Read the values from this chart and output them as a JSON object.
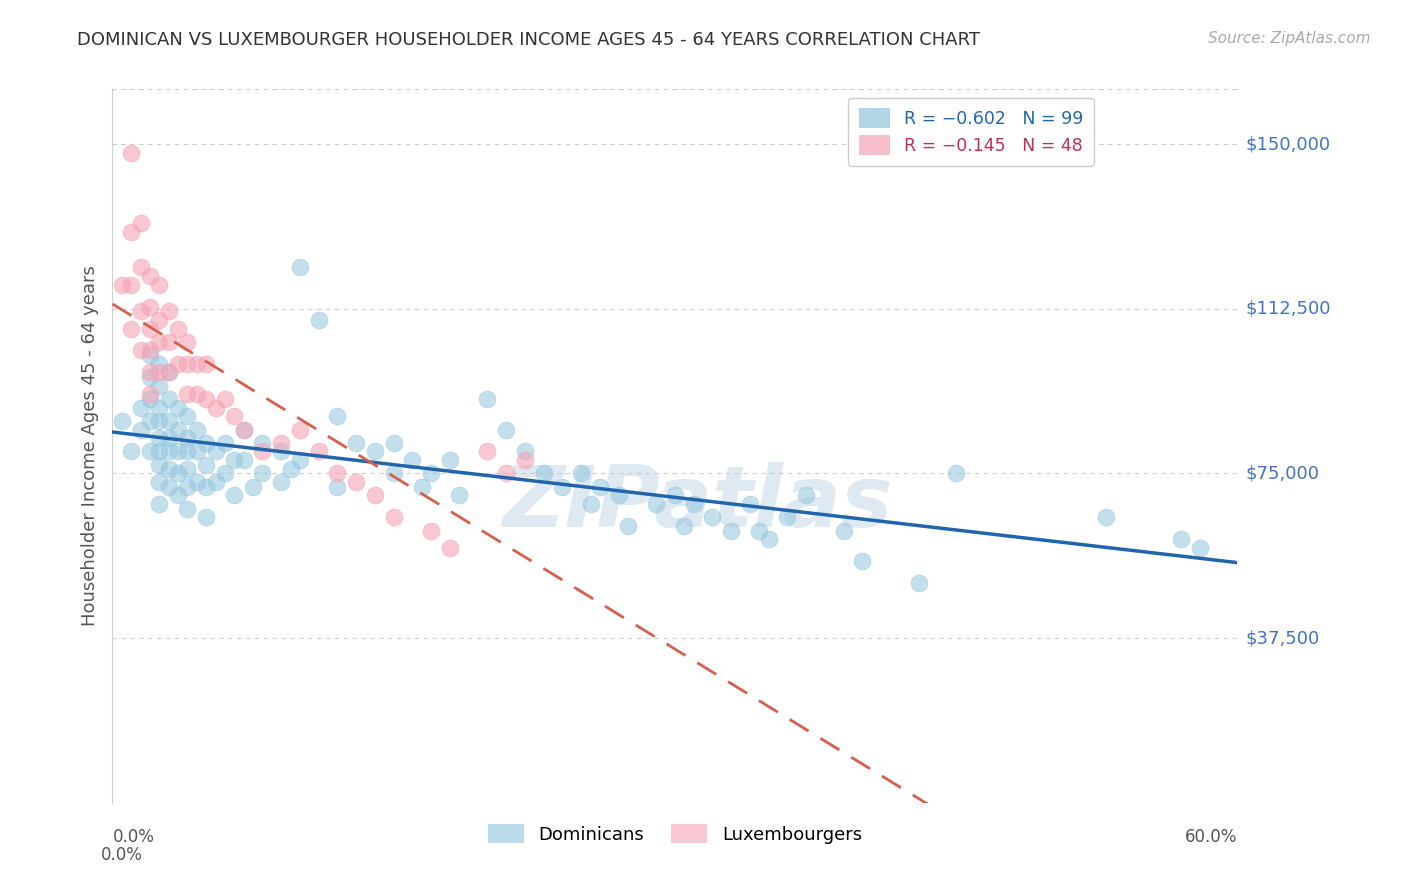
{
  "title": "DOMINICAN VS LUXEMBOURGER HOUSEHOLDER INCOME AGES 45 - 64 YEARS CORRELATION CHART",
  "source": "Source: ZipAtlas.com",
  "ylabel": "Householder Income Ages 45 - 64 years",
  "ytick_labels": [
    "$37,500",
    "$75,000",
    "$112,500",
    "$150,000"
  ],
  "ytick_values": [
    37500,
    75000,
    112500,
    150000
  ],
  "ylim": [
    0,
    162500
  ],
  "xlim": [
    0.0,
    0.6
  ],
  "watermark": "ZIPatlas",
  "dominican_color": "#92c5de",
  "luxembourger_color": "#f4a3b5",
  "regression_dominican_color": "#2166ac",
  "regression_luxembourger_color": "#d6604d",
  "background_color": "#ffffff",
  "grid_color": "#cccccc",
  "dominican_scatter": {
    "x": [
      0.005,
      0.01,
      0.015,
      0.015,
      0.02,
      0.02,
      0.02,
      0.02,
      0.02,
      0.025,
      0.025,
      0.025,
      0.025,
      0.025,
      0.025,
      0.025,
      0.025,
      0.025,
      0.03,
      0.03,
      0.03,
      0.03,
      0.03,
      0.03,
      0.03,
      0.035,
      0.035,
      0.035,
      0.035,
      0.035,
      0.04,
      0.04,
      0.04,
      0.04,
      0.04,
      0.04,
      0.045,
      0.045,
      0.045,
      0.05,
      0.05,
      0.05,
      0.05,
      0.055,
      0.055,
      0.06,
      0.06,
      0.065,
      0.065,
      0.07,
      0.07,
      0.075,
      0.08,
      0.08,
      0.09,
      0.09,
      0.095,
      0.1,
      0.1,
      0.11,
      0.12,
      0.12,
      0.13,
      0.14,
      0.15,
      0.15,
      0.16,
      0.165,
      0.17,
      0.18,
      0.185,
      0.2,
      0.21,
      0.22,
      0.23,
      0.24,
      0.25,
      0.255,
      0.26,
      0.27,
      0.275,
      0.29,
      0.3,
      0.305,
      0.31,
      0.32,
      0.33,
      0.34,
      0.345,
      0.35,
      0.36,
      0.37,
      0.39,
      0.4,
      0.43,
      0.45,
      0.53,
      0.57,
      0.58
    ],
    "y": [
      87000,
      80000,
      90000,
      85000,
      102000,
      97000,
      92000,
      87000,
      80000,
      100000,
      95000,
      90000,
      87000,
      83000,
      80000,
      77000,
      73000,
      68000,
      98000,
      92000,
      87000,
      83000,
      80000,
      76000,
      72000,
      90000,
      85000,
      80000,
      75000,
      70000,
      88000,
      83000,
      80000,
      76000,
      72000,
      67000,
      85000,
      80000,
      73000,
      82000,
      77000,
      72000,
      65000,
      80000,
      73000,
      82000,
      75000,
      78000,
      70000,
      85000,
      78000,
      72000,
      82000,
      75000,
      80000,
      73000,
      76000,
      122000,
      78000,
      110000,
      88000,
      72000,
      82000,
      80000,
      82000,
      75000,
      78000,
      72000,
      75000,
      78000,
      70000,
      92000,
      85000,
      80000,
      75000,
      72000,
      75000,
      68000,
      72000,
      70000,
      63000,
      68000,
      70000,
      63000,
      68000,
      65000,
      62000,
      68000,
      62000,
      60000,
      65000,
      70000,
      62000,
      55000,
      50000,
      75000,
      65000,
      60000,
      58000
    ]
  },
  "luxembourger_scatter": {
    "x": [
      0.005,
      0.01,
      0.01,
      0.01,
      0.01,
      0.015,
      0.015,
      0.015,
      0.015,
      0.02,
      0.02,
      0.02,
      0.02,
      0.02,
      0.02,
      0.025,
      0.025,
      0.025,
      0.025,
      0.03,
      0.03,
      0.03,
      0.035,
      0.035,
      0.04,
      0.04,
      0.04,
      0.045,
      0.045,
      0.05,
      0.05,
      0.055,
      0.06,
      0.065,
      0.07,
      0.08,
      0.09,
      0.1,
      0.11,
      0.12,
      0.13,
      0.14,
      0.15,
      0.17,
      0.18,
      0.2,
      0.21,
      0.22
    ],
    "y": [
      118000,
      148000,
      130000,
      118000,
      108000,
      132000,
      122000,
      112000,
      103000,
      120000,
      113000,
      108000,
      103000,
      98000,
      93000,
      118000,
      110000,
      105000,
      98000,
      112000,
      105000,
      98000,
      108000,
      100000,
      105000,
      100000,
      93000,
      100000,
      93000,
      100000,
      92000,
      90000,
      92000,
      88000,
      85000,
      80000,
      82000,
      85000,
      80000,
      75000,
      73000,
      70000,
      65000,
      62000,
      58000,
      80000,
      75000,
      78000
    ]
  }
}
